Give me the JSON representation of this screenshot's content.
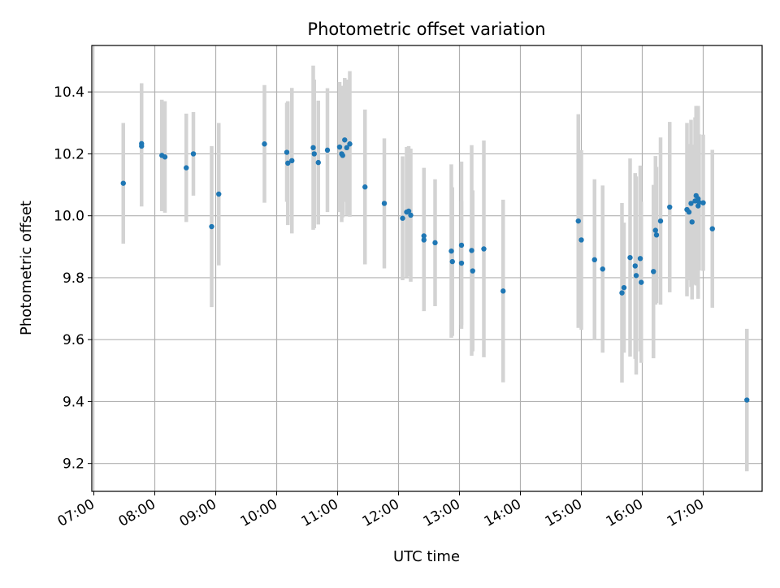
{
  "chart_data": {
    "type": "scatter",
    "title": "Photometric offset variation",
    "xlabel": "UTC time",
    "ylabel": "Photometric offset",
    "x_tick_labels": [
      "07:00",
      "08:00",
      "09:00",
      "10:00",
      "11:00",
      "12:00",
      "13:00",
      "14:00",
      "15:00",
      "16:00",
      "17:00"
    ],
    "y_tick_labels": [
      "9.2",
      "9.4",
      "9.6",
      "9.8",
      "10.0",
      "10.2",
      "10.4"
    ],
    "ylim": [
      9.11,
      10.55
    ],
    "xlim": [
      "06:58",
      "17:58"
    ],
    "grid": true,
    "point_color": "#1f77b4",
    "errorbar_color": "#d3d3d3",
    "series": [
      {
        "x": [
          "07:29",
          "07:47",
          "07:47",
          "08:07",
          "08:10",
          "08:31",
          "08:38",
          "08:56",
          "09:03",
          "09:48",
          "10:10",
          "10:11",
          "10:15",
          "10:36",
          "10:37",
          "10:41",
          "10:50",
          "11:02",
          "11:04",
          "11:05",
          "11:07",
          "11:09",
          "11:12",
          "11:27",
          "11:46",
          "12:04",
          "12:08",
          "12:10",
          "12:12",
          "12:25",
          "12:25",
          "12:36",
          "12:52",
          "12:53",
          "13:02",
          "13:02",
          "13:12",
          "13:13",
          "13:24",
          "13:43",
          "14:57",
          "15:00",
          "15:13",
          "15:21",
          "15:40",
          "15:42",
          "15:48",
          "15:53",
          "15:54",
          "15:58",
          "15:59",
          "16:11",
          "16:13",
          "16:14",
          "16:18",
          "16:27",
          "16:44",
          "16:46",
          "16:48",
          "16:49",
          "16:52",
          "16:53",
          "16:55",
          "16:55",
          "16:56",
          "17:00",
          "17:09",
          "17:43"
        ],
        "y": [
          10.105,
          10.233,
          10.225,
          10.195,
          10.19,
          10.155,
          10.2,
          9.965,
          10.07,
          10.232,
          10.205,
          10.17,
          10.178,
          10.22,
          10.2,
          10.172,
          10.212,
          10.222,
          10.2,
          10.195,
          10.245,
          10.22,
          10.232,
          10.093,
          10.04,
          9.992,
          10.012,
          10.015,
          10.002,
          9.935,
          9.922,
          9.913,
          9.886,
          9.852,
          9.905,
          9.847,
          9.888,
          9.822,
          9.893,
          9.757,
          9.983,
          9.922,
          9.858,
          9.828,
          9.751,
          9.768,
          9.865,
          9.838,
          9.807,
          9.862,
          9.785,
          9.82,
          9.953,
          9.938,
          9.983,
          10.028,
          10.02,
          10.012,
          10.04,
          9.98,
          10.048,
          10.065,
          10.055,
          10.032,
          10.043,
          10.042,
          9.958,
          9.405
        ],
        "err": [
          0.195,
          0.195,
          0.195,
          0.18,
          0.18,
          0.175,
          0.135,
          0.26,
          0.23,
          0.19,
          0.16,
          0.2,
          0.235,
          0.265,
          0.24,
          0.2,
          0.2,
          0.21,
          0.22,
          0.2,
          0.2,
          0.22,
          0.235,
          0.25,
          0.21,
          0.2,
          0.21,
          0.21,
          0.215,
          0.22,
          0.23,
          0.205,
          0.28,
          0.24,
          0.27,
          0.2,
          0.34,
          0.26,
          0.35,
          0.295,
          0.345,
          0.29,
          0.26,
          0.27,
          0.29,
          0.21,
          0.32,
          0.3,
          0.32,
          0.3,
          0.26,
          0.28,
          0.24,
          0.22,
          0.27,
          0.275,
          0.28,
          0.22,
          0.27,
          0.25,
          0.27,
          0.29,
          0.3,
          0.3,
          0.22,
          0.22,
          0.255,
          0.23
        ]
      }
    ]
  }
}
